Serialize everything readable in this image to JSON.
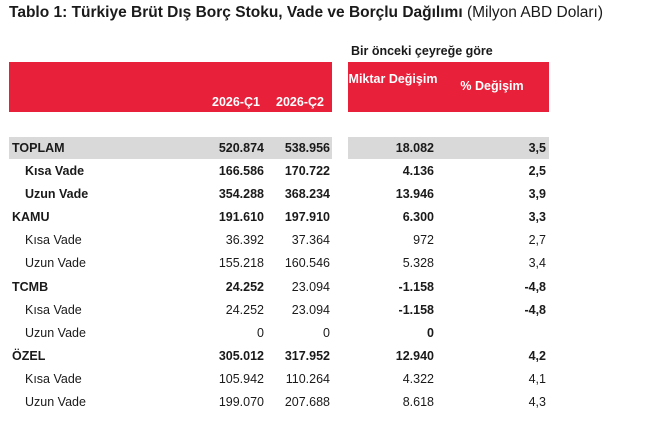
{
  "title": {
    "bold": "Tablo 1: Türkiye Brüt Dış Borç Stoku, Vade ve Borçlu Dağılımı",
    "light": "(Milyon ABD Doları)"
  },
  "group_header": "Bir önceki çeyreğe göre",
  "columns": {
    "c1": "2026-Ç1",
    "c2": "2026-Ç2",
    "miktar": "Miktar Değişim",
    "pct": "% Değişim"
  },
  "rows": [
    {
      "label": "TOPLAM",
      "c1": "520.874",
      "c2": "538.956",
      "miktar": "18.082",
      "pct": "3,5"
    },
    {
      "label": "Kısa Vade",
      "c1": "166.586",
      "c2": "170.722",
      "miktar": "4.136",
      "pct": "2,5"
    },
    {
      "label": "Uzun Vade",
      "c1": "354.288",
      "c2": "368.234",
      "miktar": "13.946",
      "pct": "3,9"
    },
    {
      "label": "KAMU",
      "c1": "191.610",
      "c2": "197.910",
      "miktar": "6.300",
      "pct": "3,3"
    },
    {
      "label": "Kısa Vade",
      "c1": "36.392",
      "c2": "37.364",
      "miktar": "972",
      "pct": "2,7"
    },
    {
      "label": "Uzun Vade",
      "c1": "155.218",
      "c2": "160.546",
      "miktar": "5.328",
      "pct": "3,4"
    },
    {
      "label": "TCMB",
      "c1": "24.252",
      "c2": "23.094",
      "miktar": "-1.158",
      "pct": "-4,8"
    },
    {
      "label": "Kısa Vade",
      "c1": "24.252",
      "c2": "23.094",
      "miktar": "-1.158",
      "pct": "-4,8"
    },
    {
      "label": "Uzun Vade",
      "c1": "0",
      "c2": "0",
      "miktar": "0",
      "pct": ""
    },
    {
      "label": "ÖZEL",
      "c1": "305.012",
      "c2": "317.952",
      "miktar": "12.940",
      "pct": "4,2"
    },
    {
      "label": "Kısa Vade",
      "c1": "105.942",
      "c2": "110.264",
      "miktar": "4.322",
      "pct": "4,1"
    },
    {
      "label": "Uzun Vade",
      "c1": "199.070",
      "c2": "207.688",
      "miktar": "8.618",
      "pct": "4,3"
    }
  ],
  "colors": {
    "header_red": "#e8203a",
    "total_shade": "#d9d9d9"
  }
}
